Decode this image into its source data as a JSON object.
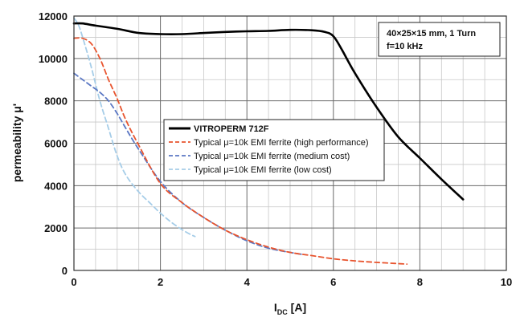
{
  "chart_data": {
    "type": "line",
    "title": "",
    "xlabel_main": "I",
    "xlabel_sub": "DC",
    "xlabel_unit": " [A]",
    "ylabel": "permeability  μ'",
    "xlim": [
      0,
      10
    ],
    "ylim": [
      0,
      12000
    ],
    "x_ticks": [
      0,
      2,
      4,
      6,
      8,
      10
    ],
    "y_ticks": [
      0,
      2000,
      4000,
      6000,
      8000,
      10000,
      12000
    ],
    "grid": true,
    "minor_grid": true,
    "legend_position": "center",
    "annotation_lines": [
      "40×25×15 mm, 1 Turn",
      "f=10 kHz"
    ],
    "series": [
      {
        "name": "VITROPERM 712F",
        "color": "#000000",
        "dash": "solid",
        "width": 2.6,
        "x": [
          0,
          0.2,
          0.5,
          1.0,
          1.5,
          2.0,
          2.5,
          3.0,
          3.5,
          4.0,
          4.5,
          5.0,
          5.5,
          5.8,
          6.0,
          6.2,
          6.5,
          7.0,
          7.5,
          8.0,
          8.5,
          9.0
        ],
        "y": [
          11650,
          11650,
          11550,
          11400,
          11200,
          11150,
          11150,
          11200,
          11250,
          11280,
          11300,
          11350,
          11330,
          11250,
          11050,
          10400,
          9300,
          7700,
          6300,
          5300,
          4300,
          3350
        ]
      },
      {
        "name": "Typical μ=10k EMI ferrite (high performance)",
        "color": "#e8542e",
        "dash": "6,4",
        "width": 1.8,
        "x": [
          0,
          0.2,
          0.4,
          0.6,
          0.8,
          1.0,
          1.2,
          1.5,
          2.0,
          2.5,
          3.0,
          3.5,
          4.0,
          4.5,
          5.0,
          5.5,
          6.0,
          6.5,
          7.0,
          7.5,
          7.7
        ],
        "y": [
          10950,
          10950,
          10700,
          10000,
          9000,
          8100,
          7100,
          5900,
          4100,
          3200,
          2500,
          1900,
          1450,
          1100,
          850,
          700,
          550,
          450,
          380,
          320,
          300
        ]
      },
      {
        "name": "Typical μ=10k EMI ferrite (medium cost)",
        "color": "#5b78c4",
        "dash": "6,4",
        "width": 1.8,
        "x": [
          0,
          0.2,
          0.4,
          0.6,
          0.8,
          1.0,
          1.2,
          1.5,
          2.0,
          2.5,
          3.0,
          3.5,
          4.0,
          4.5,
          5.0,
          5.3
        ],
        "y": [
          9300,
          9000,
          8700,
          8400,
          8000,
          7400,
          6700,
          5700,
          4200,
          3200,
          2500,
          1900,
          1400,
          1050,
          850,
          750
        ]
      },
      {
        "name": "Typical μ=10k EMI ferrite (low cost)",
        "color": "#a6cde8",
        "dash": "6,4",
        "width": 1.8,
        "x": [
          0,
          0.1,
          0.2,
          0.4,
          0.6,
          0.8,
          1.0,
          1.2,
          1.5,
          1.8,
          2.0,
          2.3,
          2.6,
          2.8
        ],
        "y": [
          11900,
          11600,
          11000,
          9600,
          8000,
          6700,
          5400,
          4500,
          3700,
          3100,
          2700,
          2200,
          1800,
          1600
        ]
      }
    ]
  }
}
